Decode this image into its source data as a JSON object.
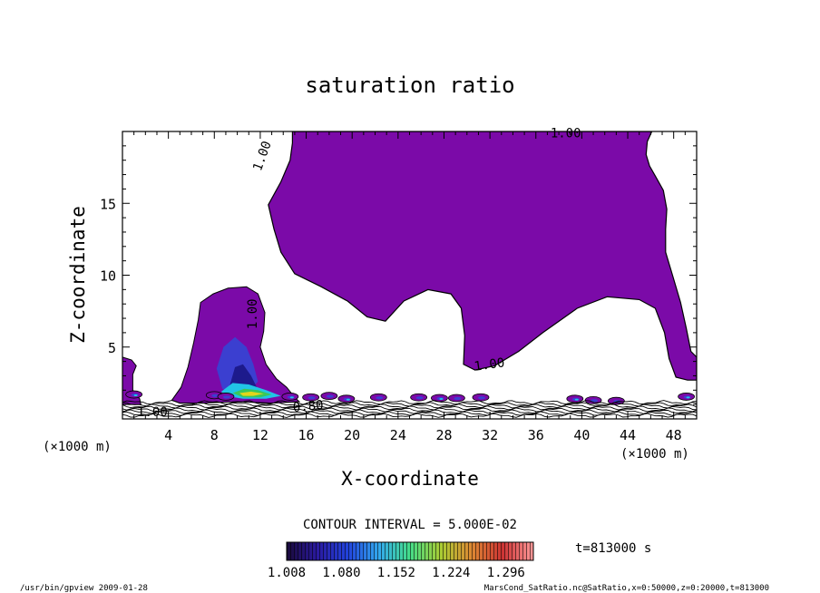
{
  "chart_data": {
    "type": "heatmap",
    "title": "saturation ratio",
    "xlabel": "X-coordinate",
    "ylabel": "Z-coordinate",
    "x_unit": "(×1000 m)",
    "xlim": [
      0,
      50
    ],
    "ylim": [
      0,
      20
    ],
    "x_ticks": [
      4,
      8,
      12,
      16,
      20,
      24,
      28,
      32,
      36,
      40,
      44,
      48
    ],
    "y_ticks": [
      5,
      10,
      15
    ],
    "contour_interval_text": "CONTOUR INTERVAL = 5.000E-02",
    "time_text": "t=813000 s",
    "colorbar": {
      "min": 1.008,
      "max": 1.332,
      "labels": [
        "1.008",
        "1.080",
        "1.152",
        "1.224",
        "1.296"
      ],
      "colors": [
        "#1a0a3a",
        "#2a1aa0",
        "#2244dd",
        "#33aaee",
        "#44dd88",
        "#aacc33",
        "#dd8833",
        "#cc3333",
        "#ff9999"
      ]
    },
    "contour_labels": [
      {
        "text": "1.00",
        "x": 38.6,
        "y": 19.6,
        "angle": 0
      },
      {
        "text": "1.00",
        "x": 12.5,
        "y": 18.2,
        "angle": -70
      },
      {
        "text": "1.00",
        "x": 11.7,
        "y": 7.3,
        "angle": -90
      },
      {
        "text": "1.00",
        "x": 32.0,
        "y": 3.5,
        "angle": -8
      },
      {
        "text": "0.80",
        "x": 16.2,
        "y": 0.6,
        "angle": -5
      },
      {
        "text": "1.00",
        "x": 2.6,
        "y": 0.2,
        "angle": 0
      }
    ],
    "regions": {
      "supersaturated_color": "#7b0aa8",
      "upper_cloud": [
        [
          14.8,
          20
        ],
        [
          46.1,
          20
        ],
        [
          45.7,
          19.3
        ],
        [
          45.6,
          18.4
        ],
        [
          45.9,
          17.6
        ],
        [
          46.4,
          16.9
        ],
        [
          47.1,
          15.9
        ],
        [
          47.4,
          14.6
        ],
        [
          47.3,
          13.2
        ],
        [
          47.3,
          11.6
        ],
        [
          47.9,
          10.0
        ],
        [
          48.6,
          8.1
        ],
        [
          49.1,
          6.3
        ],
        [
          49.5,
          4.7
        ],
        [
          50.0,
          4.3
        ],
        [
          50.0,
          2.7
        ],
        [
          49.2,
          2.7
        ],
        [
          48.2,
          2.9
        ],
        [
          47.6,
          4.2
        ],
        [
          47.2,
          6.0
        ],
        [
          46.4,
          7.7
        ],
        [
          45.0,
          8.3
        ],
        [
          42.2,
          8.5
        ],
        [
          39.6,
          7.7
        ],
        [
          36.6,
          6.0
        ],
        [
          34.5,
          4.7
        ],
        [
          32.4,
          3.7
        ],
        [
          30.7,
          3.4
        ],
        [
          29.7,
          3.8
        ],
        [
          29.8,
          5.8
        ],
        [
          29.5,
          7.7
        ],
        [
          28.6,
          8.7
        ],
        [
          26.6,
          9.0
        ],
        [
          24.5,
          8.2
        ],
        [
          22.9,
          6.8
        ],
        [
          21.3,
          7.1
        ],
        [
          19.6,
          8.2
        ],
        [
          17.3,
          9.2
        ],
        [
          15.0,
          10.1
        ],
        [
          13.8,
          11.6
        ],
        [
          13.2,
          13.2
        ],
        [
          12.7,
          14.9
        ],
        [
          13.8,
          16.5
        ],
        [
          14.6,
          18.0
        ],
        [
          14.8,
          19.2
        ]
      ],
      "lower_cloud": [
        [
          4.3,
          1.3
        ],
        [
          5.1,
          2.2
        ],
        [
          5.7,
          3.6
        ],
        [
          6.2,
          5.3
        ],
        [
          6.6,
          6.9
        ],
        [
          6.8,
          8.1
        ],
        [
          7.9,
          8.7
        ],
        [
          9.2,
          9.1
        ],
        [
          10.8,
          9.2
        ],
        [
          11.8,
          8.7
        ],
        [
          12.4,
          7.4
        ],
        [
          12.3,
          6.1
        ],
        [
          12.0,
          5.0
        ],
        [
          12.5,
          3.8
        ],
        [
          13.4,
          2.8
        ],
        [
          14.3,
          2.2
        ],
        [
          15.0,
          1.5
        ],
        [
          15.4,
          1.2
        ],
        [
          13.0,
          1.1
        ],
        [
          10.0,
          1.2
        ],
        [
          7.0,
          1.1
        ],
        [
          5.0,
          1.1
        ]
      ],
      "left_edge_cloud": [
        [
          0,
          4.3
        ],
        [
          0.8,
          4.1
        ],
        [
          1.2,
          3.7
        ],
        [
          0.9,
          3.1
        ],
        [
          0.9,
          2.0
        ],
        [
          1.5,
          1.4
        ],
        [
          1.6,
          1.0
        ],
        [
          0,
          1.0
        ]
      ],
      "core_layers": [
        {
          "level": "blue",
          "color": "#3b3fd0",
          "points": [
            [
              8.2,
              3.5
            ],
            [
              8.8,
              5.0
            ],
            [
              9.8,
              5.7
            ],
            [
              10.8,
              5.0
            ],
            [
              11.4,
              3.8
            ],
            [
              11.8,
              2.6
            ],
            [
              11.0,
              1.9
            ],
            [
              9.8,
              1.8
            ],
            [
              8.7,
              2.1
            ]
          ]
        },
        {
          "level": "navy",
          "color": "#1d1a8c",
          "points": [
            [
              9.3,
              2.2
            ],
            [
              9.8,
              3.6
            ],
            [
              10.5,
              3.8
            ],
            [
              11.2,
              3.0
            ],
            [
              11.7,
              2.2
            ],
            [
              11.0,
              1.9
            ],
            [
              10.0,
              1.9
            ]
          ]
        },
        {
          "level": "cyan",
          "color": "#21c4e6",
          "points": [
            [
              8.6,
              1.9
            ],
            [
              9.6,
              2.5
            ],
            [
              11.0,
              2.4
            ],
            [
              12.5,
              2.0
            ],
            [
              13.8,
              1.6
            ],
            [
              12.5,
              1.4
            ],
            [
              10.5,
              1.4
            ],
            [
              9.0,
              1.6
            ]
          ]
        },
        {
          "level": "green",
          "color": "#38c75a",
          "points": [
            [
              9.6,
              1.8
            ],
            [
              10.6,
              2.1
            ],
            [
              11.8,
              2.0
            ],
            [
              13.0,
              1.7
            ],
            [
              12.0,
              1.5
            ],
            [
              10.5,
              1.5
            ]
          ]
        },
        {
          "level": "yellow",
          "color": "#e2d51b",
          "points": [
            [
              10.2,
              1.8
            ],
            [
              11.2,
              1.9
            ],
            [
              12.3,
              1.75
            ],
            [
              11.4,
              1.6
            ],
            [
              10.5,
              1.6
            ]
          ]
        }
      ],
      "patch_centers": [
        [
          1.0,
          1.7
        ],
        [
          8.0,
          1.65
        ],
        [
          9.0,
          1.55
        ],
        [
          14.6,
          1.55
        ],
        [
          16.4,
          1.5
        ],
        [
          18.0,
          1.6
        ],
        [
          19.5,
          1.4
        ],
        [
          22.3,
          1.5
        ],
        [
          25.8,
          1.5
        ],
        [
          27.6,
          1.45
        ],
        [
          29.1,
          1.45
        ],
        [
          31.2,
          1.5
        ],
        [
          39.4,
          1.4
        ],
        [
          41.0,
          1.3
        ],
        [
          43.0,
          1.25
        ],
        [
          49.1,
          1.55
        ]
      ]
    }
  },
  "footer": {
    "left": "/usr/bin/gpview  2009-01-28",
    "right": "MarsCond_SatRatio.nc@SatRatio,x=0:50000,z=0:20000,t=813000"
  }
}
